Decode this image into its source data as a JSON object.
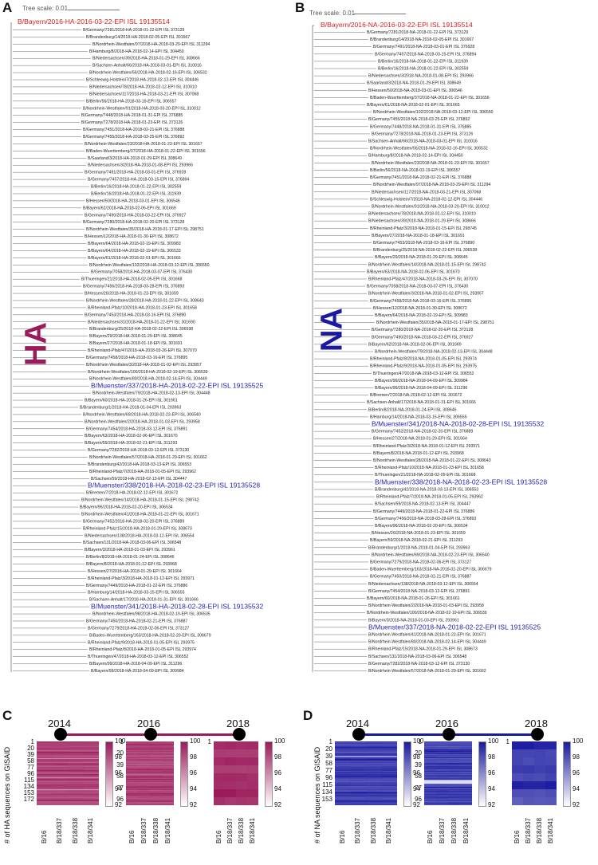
{
  "panels": {
    "A": "A",
    "B": "B",
    "C": "C",
    "D": "D"
  },
  "tree_scale_label": "Tree scale: 0.01",
  "gene_labels": {
    "ha": "HA",
    "na": "NA"
  },
  "colors": {
    "ha": "#9b1b5a",
    "na": "#1a1aa0",
    "root_red": "#d42020",
    "ha_highlight": "#1f1fb0",
    "na_highlight": "#1f1fb0"
  },
  "tree_a": {
    "root": "B/Bayern/2016-HA-2016-03-22-EPI ISL 19135514",
    "leaves": [
      "B/Germany/7281/2018-HA-2018-01-22-EPI ISL 373129",
      "B/Brandenburg/14/2018-HA-2018-02-05-EPI ISL 301667",
      "B/Nordrhein-Westfalen/97/2018-HA-2018-03-29-EPI ISL 311294",
      "B/Hamburg/8/2018-HA-2018-02-14-EPI ISL 304450",
      "B/Niedersachsen/39/2018-HA-2018-01-29-EPI ISL 308666",
      "B/Sachsen-Anhalt/66/2018-HA-2018-03-01-EPI ISL 310016",
      "B/Nordrhein-Westfalen/56/2018-HA-2018-02-16-EPI ISL 306532",
      "B/Schleswig-Holstein/7/2018-HA-2018-02-12-EPI ISL 304446",
      "B/Niedersachsen/78/2018-HA-2018-02-12-EPI ISL 310010",
      "B/Niedersachsen/117/2018-HA-2018-03-21-EPI ISL 307068",
      "B/Berlin/56/2018-HA-2018-03-19-EPI ISL 306557",
      "B/Nordrhein-Westfalen/91/2018-HA-2018-03-20-EPI ISL 310012",
      "B/Germany/7448/2018-HA-2018-01-31-EPI ISL 376885",
      "B/Germany/7278/2018-HA-2018-01-23-EPI ISL 373126",
      "B/Germany/7451/2018-HA-2018-02-21-EPI ISL 376888",
      "B/Germany/7455/2018-HA-2018-03-25-EPI ISL 376892",
      "B/Nordrhein-Westfalen/23/2018-HA-2018-01-23-EPI ISL 301657",
      "B/Baden-Wuerttemberg/37/2018-HA-2018-01-22-EPI ISL 301656",
      "B/Saarland/3/2018-HA-2018-01-29-EPI ISL 308649",
      "B/Niedersachsen/3/2018-HA-2018-01-08-EPI ISL 293966",
      "B/Germany/7491/2018-HA-2018-03-01-EPI ISL 376928",
      "B/Germany/7457/2018-HA-2018-03-15-EPI ISL 376894",
      "B/Berlin/16/2018-HA-2018-01-22-EPI ISL 302559",
      "B/Berlin/16/2018-HA-2018-01-22-EPI ISL 311939",
      "B/Hessen/50/2018-HA-2018-03-01-EPI ISL 306546",
      "B/Bayern/62/2018-HA-2018-02-06-EPI ISL 301669",
      "B/Germany/7490/2018-HA-2018-03-22-EPI ISL 376927",
      "B/Germany/7280/2018-HA-2018-02-20-EPI ISL 373128",
      "B/Nordrhein-Westfalen/35/2018-HA-2018-01-17-EPI ISL 298751",
      "B/Hessen/12/2018-HA-2018-01-30-EPI ISL 308672",
      "B/Bayern/64/2018-HA-2018-02-19-EPI ISL 309983",
      "B/Bayern/64/2018-HA-2018-02-19-EPI ISL 306533",
      "B/Bayern/61/2018-HA-2018-02-01-EPI ISL 301665",
      "B/Nordrhein-Westfalen/102/2018-HA-2018-03-12-EPI ISL 306550",
      "B/Germany/7058/2018-HA-2018-03-07-EPI ISL 376430",
      "B/Thueringen/21/2018-HA-2018-02-05-EPI ISL 301668",
      "B/Germany/7456/2018-HA-2018-03-28-EPI ISL 376893",
      "B/Hessen/26/2018-HA-2018-01-23-EPI ISL 301659",
      "B/Nordrhein-Westfalen/28/2018-HA-2018-01-22-EPI ISL 308643",
      "B/Rheinland-Pfalz/10/2018-HA-2018-01-23-EPI ISL 301658",
      "B/Germany/7453/2018-HA-2018-03-16-EPI ISL 376890",
      "B/Niedersachsen/31/2018-HA-2018-01-22-EPI ISL 301690",
      "B/Brandenburg/25/2018-HA-2018-02-22-EPI ISL 306538",
      "B/Bayern/29/2018-HA-2018-01-29-EPI ISL 308645",
      "B/Bayern/27/2018-HA-2018-01-18-EPI ISL 301691",
      "B/Rheinland-Pfalz/47/2018-HA-2018-03-26-EPI ISL 307070",
      "B/Germany/7458/2018-HA-2018-03-16-EPI ISL 376895",
      "B/Nordrhein-Westfalen/3/2018-HA-2018-01-02-EPI ISL 293957",
      "B/Nordrhein-Westfalen/100/2018-HA-2018-02-19-EPI ISL 306539",
      "B/Nordrhein-Westfalen/80/2018-HA-2018-02-14-EPI ISL 304449",
      "B/Muenster/337/2018-HA-2018-02-22-EPI ISL 19135525",
      "B/Nordrhein-Westfalen/79/2018-HA-2018-02-13-EPI ISL 304448",
      "B/Bayern/60/2018-HA-2018-01-26-EPI ISL 301661",
      "B/Brandenburg/1/2018-HA-2018-01-04-EPI ISL 293963",
      "B/Nordrhein-Westfalen/69/2018-HA-2018-02-23-EPI ISL 306540",
      "B/Nordrhein-Westfalen/2/2018-HA-2018-01-03-EPI ISL 293958",
      "B/Germany/7454/2018-HA-2018-03-12-EPI ISL 376891",
      "B/Bayern/63/2018-HA-2018-02-06-EPI ISL 301670",
      "B/Bayern/59/2018-HA-2018-02-21-EPI ISL 311293",
      "B/Germany/7282/2018-HA-2018-03-12-EPI ISL 373130",
      "B/Nordrhein-Westfalen/57/2018-HA-2018-01-29-EPI ISL 301662",
      "B/Brandenburg/42/2018-HA-2018-03-13-EPI ISL 306553",
      "B/Rheinland-Pfalz/7/2018-HA-2018-01-05-EPI ISL 293962",
      "B/Sachsen/59/2018-HA-2018-02-13-EPI ISL 304447",
      "B/Muenster/338/2018-HA-2018-02-23-EPI ISL 19135528",
      "B/Bremen/7/2018-HA-2018-02-12-EPI ISL 301672",
      "B/Nordrhein-Westfalen/14/2018-HA-2018-01-15-EPI ISL 298742",
      "B/Bayern/96/2018-HA-2018-02-20-EPI ISL 306534",
      "B/Nordrhein-Westfalen/41/2018-HA-2018-01-22-EPI ISL 301671",
      "B/Germany/7452/2018-HA-2018-02-20-EPI ISL 376889",
      "B/Rheinland-Pfalz/15/2018-HA-2018-01-29-EPI ISL 308673",
      "B/Niedersachsen/138/2018-HA-2018-03-12-EPI ISL 306554",
      "B/Sachsen/131/2018-HA-2018-03-06-EPI ISL 306548",
      "B/Bayern/3/2018-HA-2018-01-03-EPI ISL 293961",
      "B/Berlin/8/2018-HA-2018-01-24-EPI ISL 308646",
      "B/Bayern/8/2018-HA-2018-01-12-EPI ISL 293968",
      "B/Hessen/27/2018-HA-2018-01-29-EPI ISL 301664",
      "B/Rheinland-Pfalz/3/2018-HA-2018-01-12-EPI ISL 293971",
      "B/Germany/7449/2018-HA-2018-01-22-EPI ISL 376886",
      "B/Hamburg/14/2018-HA-2018-03-15-EPI ISL 306555",
      "B/Sachsen-Anhalt/17/2018-HA-2018-01-31-EPI ISL 301666",
      "B/Muenster/341/2018-HA-2018-02-28-EPI ISL 19135532",
      "B/Nordrhein-Westfalen/98/2018-HA-2018-02-19-EPI ISL 306535",
      "B/Germany/7450/2018-HA-2018-02-21-EPI ISL 376887",
      "B/Germany/7279/2018-HA-2018-02-06-EPI ISL 373127",
      "B/Baden-Wuerttemberg/163/2018-HA-2018-02-20-EPI ISL 306679",
      "B/Rheinland-Pfalz/9/2018-HA-2018-01-05-EPI ISL 293975",
      "B/Rheinland-Pfalz/8/2018-HA-2018-01-05-EPI ISL 293974",
      "B/Thueringen/47/2018-HA-2018-03-12-EPI ISL 306552",
      "B/Bayern/99/2018-HA-2018-04-09-EPI ISL 311296",
      "B/Bayern/99/2018-HA-2018-04-09-EPI ISL 309984"
    ]
  },
  "tree_b": {
    "root": "B/Bayern/2016-NA-2016-03-22-EPI ISL 19135514",
    "leaves": [
      "B/Germany/7281/2018-NA-2018-01-22-EPI ISL 373129",
      "B/Brandenburg/14/2018-NA-2018-02-05-EPI ISL 301667",
      "B/Germany/7491/2018-NA-2018-03-01-EPI ISL 376928",
      "B/Germany/7457/2018-NA-2018-03-15-EPI ISL 376894",
      "B/Berlin/16/2018-NA-2018-01-22-EPI ISL 311939",
      "B/Berlin/16/2018-NA-2018-01-22-EPI ISL 302559",
      "B/Niedersachsen/3/2018-NA-2018-01-08-EPI ISL 293966",
      "B/Saarland/3/2018-NA-2018-01-29-EPI ISL 308649",
      "B/Hessen/50/2018-NA-2018-03-01-EPI ISL 306546",
      "B/Baden-Wuerttemberg/37/2018-NA-2018-01-22-EPI ISL 301656",
      "B/Bayern/61/2018-NA-2018-02-01-EPI ISL 301665",
      "B/Nordrhein-Westfalen/102/2018-NA-2018-03-12-EPI ISL 306550",
      "B/Germany/7455/2018-NA-2018-03-25-EPI ISL 376892",
      "B/Germany/7448/2018-NA-2018-01-31-EPI ISL 376885",
      "B/Germany/7278/2018-NA-2018-01-23-EPI ISL 373126",
      "B/Sachsen-Anhalt/66/2018-NA-2018-03-01-EPI ISL 310016",
      "B/Nordrhein-Westfalen/56/2018-NA-2018-02-16-EPI ISL 306532",
      "B/Hamburg/8/2018-NA-2018-02-14-EPI ISL 304450",
      "B/Nordrhein-Westfalen/23/2018-NA-2018-01-23-EPI ISL 301657",
      "B/Berlin/56/2018-NA-2018-03-19-EPI ISL 306557",
      "B/Germany/7451/2018-NA-2018-02-21-EPI ISL 376888",
      "B/Nordrhein-Westfalen/97/2018-NA-2018-03-29-EPI ISL 311294",
      "B/Niedersachsen/117/2018-NA-2018-03-21-EPI ISL 307068",
      "B/Schleswig-Holstein/7/2018-NA-2018-02-12-EPI ISL 304446",
      "B/Nordrhein-Westfalen/91/2018-NA-2018-03-20-EPI ISL 310012",
      "B/Niedersachsen/78/2018-NA-2018-02-12-EPI ISL 310010",
      "B/Niedersachsen/39/2018-NA-2018-01-29-EPI ISL 308666",
      "B/Rheinland-Pfalz/3/2018-NA-2018-01-15-EPI ISL 298745",
      "B/Bayern/27/2018-NA-2018-01-18-EPI ISL 301691",
      "B/Germany/7453/2018-NA-2018-03-16-EPI ISL 376890",
      "B/Brandenburg/25/2018-NA-2018-02-22-EPI ISL 306538",
      "B/Bayern/29/2018-NA-2018-01-29-EPI ISL 308645",
      "B/Nordrhein-Westfalen/14/2018-NA-2018-01-15-EPI ISL 298742",
      "B/Bayern/63/2018-NA-2018-02-06-EPI ISL 301670",
      "B/Rheinland-Pfalz/47/2018-NA-2018-03-26-EPI ISL 307070",
      "B/Germany/7058/2018-NA-2018-03-07-EPI ISL 376430",
      "B/Nordrhein-Westfalen/3/2018-NA-2018-01-02-EPI ISL 293957",
      "B/Germany/7458/2018-NA-2018-03-16-EPI ISL 376895",
      "B/Hessen/12/2018-NA-2018-01-30-EPI ISL 308672",
      "B/Bayern/64/2018-NA-2018-02-19-EPI ISL 309983",
      "B/Nordrhein-Westfalen/35/2018-NA-2018-01-17-EPI ISL 298751",
      "B/Germany/7280/2018-NA-2018-02-20-EPI ISL 373128",
      "B/Germany/7490/2018-NA-2018-03-22-EPI ISL 376927",
      "B/Bayern/62/2018-NA-2018-02-06-EPI ISL 301669",
      "B/Nordrhein-Westfalen/79/2018-NA-2018-02-13-EPI ISL 304448",
      "B/Rheinland-Pfalz/8/2018-NA-2018-01-05-EPI ISL 293974",
      "B/Rheinland-Pfalz/9/2018-NA-2018-01-05-EPI ISL 293975",
      "B/Thueringen/47/2018-NA-2018-03-12-EPI ISL 306552",
      "B/Bayern/99/2018-NA-2018-04-09-EPI ISL 309984",
      "B/Bayern/99/2018-NA-2018-04-09-EPI ISL 311296",
      "B/Bremen/7/2018-NA-2018-02-12-EPI ISL 301672",
      "B/Sachsen-Anhalt/17/2018-NA-2018-01-31-EPI ISL 301666",
      "B/Berlin/8/2018-NA-2018-01-24-EPI ISL 308646",
      "B/Hamburg/14/2018-NA-2018-03-15-EPI ISL 306555",
      "B/Muenster/341/2018-NA-2018-02-28-EPI ISL 19135532",
      "B/Germany/7452/2018-NA-2018-02-20-EPI ISL 376889",
      "B/Hessen/27/2018-NA-2018-01-29-EPI ISL 301664",
      "B/Rheinland-Pfalz/3/2018-NA-2018-01-12-EPI ISL 293971",
      "B/Bayern/8/2018-NA-2018-01-12-EPI ISL 293968",
      "B/Nordrhein-Westfalen/28/2018-NA-2018-01-22-EPI ISL 308643",
      "B/Rheinland-Pfalz/10/2018-NA-2018-01-23-EPI ISL 301658",
      "B/Thueringen/21/2018-NA-2018-02-05-EPI ISL 301668",
      "B/Muenster/338/2018-NA-2018-02-23-EPI ISL 19135528",
      "B/Brandenburg/42/2018-NA-2018-03-13-EPI ISL 306553",
      "B/Rheinland-Pfalz/7/2018-NA-2018-01-05-EPI ISL 293962",
      "B/Sachsen/59/2018-NA-2018-02-13-EPI ISL 304447",
      "B/Germany/7449/2018-NA-2018-01-22-EPI ISL 376886",
      "B/Germany/7456/2018-NA-2018-03-28-EPI ISL 376893",
      "B/Bayern/96/2018-NA-2018-02-20-EPI ISL 306534",
      "B/Hessen/26/2018-NA-2018-01-23-EPI ISL 301659",
      "B/Bayern/59/2018-NA-2018-02-21-EPI ISL 311293",
      "B/Brandenburg/1/2018-NA-2018-01-04-EPI ISL 293963",
      "B/Nordrhein-Westfalen/69/2018-NA-2018-02-23-EPI ISL 306540",
      "B/Germany/7279/2018-NA-2018-02-06-EPI ISL 373127",
      "B/Baden-Wuerttemberg/163/2018-NA-2018-02-20-EPI ISL 306679",
      "B/Germany/7450/2018-NA-2018-02-21-EPI ISL 376887",
      "B/Niedersachsen/138/2018-NA-2018-03-12-EPI ISL 306554",
      "B/Germany/7454/2018-NA-2018-03-12-EPI ISL 376891",
      "B/Bayern/60/2018-NA-2018-01-26-EPI ISL 301661",
      "B/Nordrhein-Westfalen/2/2018-NA-2018-01-03-EPI ISL 293958",
      "B/Nordrhein-Westfalen/100/2018-NA-2018-02-19-EPI ISL 306539",
      "B/Bayern/3/2018-NA-2018-01-03-EPI ISL 293961",
      "B/Muenster/337/2018-NA-2018-02-22-EPI ISL 19135525",
      "B/Nordrhein-Westfalen/41/2018-NA-2018-01-22-EPI ISL 301671",
      "B/Nordrhein-Westfalen/80/2018-NA-2018-02-14-EPI ISL 304449",
      "B/Rheinland-Pfalz/15/2018-NA-2018-01-29-EPI ISL 308673",
      "B/Sachsen/131/2018-NA-2018-03-06-EPI ISL 306548",
      "B/Germany/7282/2018-NA-2018-03-12-EPI ISL 373130",
      "B/Nordrhein-Westfalen/57/2018-NA-2018-01-29-EPI ISL 301662"
    ]
  },
  "panel_c": {
    "ylabel": "# of HA sequences on GISAID",
    "years": [
      "2014",
      "2016",
      "2018"
    ],
    "x_labels": [
      "B/16",
      "B/18/337",
      "B/18/338",
      "B/18/341"
    ],
    "cb_ticks": [
      "100",
      "98",
      "96",
      "94",
      "92"
    ],
    "heat_2014": {
      "yticks": [
        "1",
        "20",
        "39",
        "58",
        "77",
        "96",
        "115",
        "134",
        "153",
        "172"
      ]
    },
    "heat_2016": {
      "yticks": [
        "1",
        "20",
        "39",
        "58",
        "77",
        "96"
      ]
    },
    "heat_2018": {
      "yticks": [
        "1"
      ]
    }
  },
  "panel_d": {
    "ylabel": "# of NA sequences on GISAID",
    "years": [
      "2014",
      "2016",
      "2018"
    ],
    "x_labels": [
      "B/16",
      "B/18/337",
      "B/18/338",
      "B/18/341"
    ],
    "cb_ticks": [
      "100",
      "98",
      "96",
      "94",
      "92"
    ],
    "heat_2014": {
      "yticks": [
        "1",
        "20",
        "39",
        "58",
        "77",
        "96",
        "115",
        "134",
        "153"
      ]
    },
    "heat_2016": {
      "yticks": [
        "1",
        "20",
        "39",
        "58",
        "77",
        "96"
      ]
    },
    "heat_2018": {
      "yticks": [
        "1"
      ]
    }
  },
  "chart_data": [
    {
      "type": "heatmap",
      "panel": "C",
      "year": "2014",
      "columns": [
        "B/16",
        "B/18/337",
        "B/18/338",
        "B/18/341"
      ],
      "rows": 172,
      "value_range": [
        92,
        100
      ]
    },
    {
      "type": "heatmap",
      "panel": "C",
      "year": "2016",
      "columns": [
        "B/16",
        "B/18/337",
        "B/18/338",
        "B/18/341"
      ],
      "rows": 96,
      "value_range": [
        92,
        100
      ]
    },
    {
      "type": "heatmap",
      "panel": "C",
      "year": "2018",
      "columns": [
        "B/16",
        "B/18/337",
        "B/18/338",
        "B/18/341"
      ],
      "rows": 1,
      "value_range": [
        92,
        100
      ]
    },
    {
      "type": "heatmap",
      "panel": "D",
      "year": "2014",
      "columns": [
        "B/16",
        "B/18/337",
        "B/18/338",
        "B/18/341"
      ],
      "rows": 153,
      "value_range": [
        92,
        100
      ]
    },
    {
      "type": "heatmap",
      "panel": "D",
      "year": "2016",
      "columns": [
        "B/16",
        "B/18/337",
        "B/18/338",
        "B/18/341"
      ],
      "rows": 96,
      "value_range": [
        92,
        100
      ]
    },
    {
      "type": "heatmap",
      "panel": "D",
      "year": "2018",
      "columns": [
        "B/16",
        "B/18/337",
        "B/18/338",
        "B/18/341"
      ],
      "rows": 1,
      "value_range": [
        92,
        100
      ]
    }
  ]
}
